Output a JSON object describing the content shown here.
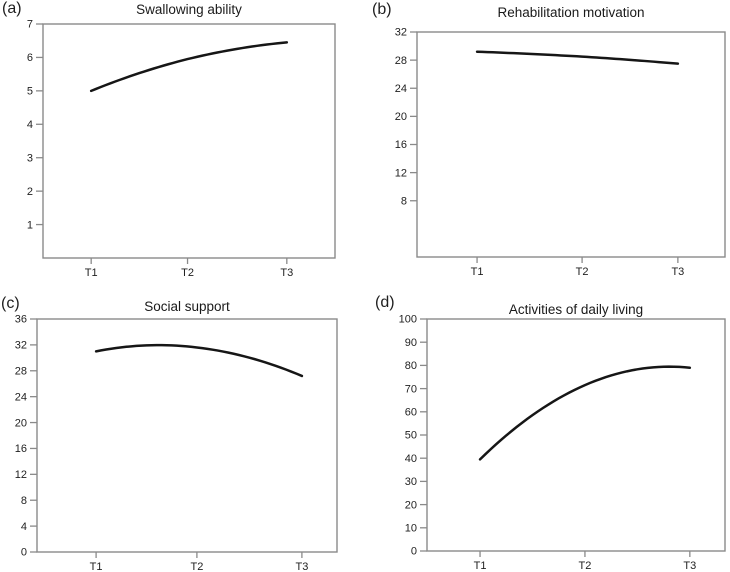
{
  "figure": {
    "description": "Four growth-curve panels over three time points",
    "background": "#ffffff"
  },
  "colors": {
    "line": "#161616",
    "frame": "#8a8a8a",
    "tick": "#8a8a8a",
    "text": "#1f1f1f"
  },
  "chart_data": [
    {
      "type": "line",
      "panel_label": "(a)",
      "title": "Swallowing ability",
      "categories": [
        "T1",
        "T2",
        "T3"
      ],
      "values": [
        5.0,
        5.95,
        6.45
      ],
      "y_ticks": [
        1,
        2,
        3,
        4,
        5,
        6,
        7
      ],
      "ylim": [
        0,
        7
      ],
      "xlabel": "",
      "ylabel": "",
      "grid": false,
      "legend": "none",
      "curve": "quadratic"
    },
    {
      "type": "line",
      "panel_label": "(b)",
      "title": "Rehabilitation motivation",
      "categories": [
        "T1",
        "T2",
        "T3"
      ],
      "values": [
        29.2,
        28.5,
        27.5
      ],
      "y_ticks": [
        8,
        12,
        16,
        20,
        24,
        28,
        32
      ],
      "ylim": [
        0,
        32
      ],
      "xlabel": "",
      "ylabel": "",
      "grid": false,
      "legend": "none",
      "curve": "quadratic"
    },
    {
      "type": "line",
      "panel_label": "(c)",
      "title": "Social support",
      "categories": [
        "T1",
        "T2",
        "T3"
      ],
      "values": [
        31.0,
        31.6,
        27.2
      ],
      "y_ticks": [
        0,
        4,
        8,
        12,
        16,
        20,
        24,
        28,
        32,
        36
      ],
      "ylim": [
        0,
        36
      ],
      "xlabel": "",
      "ylabel": "",
      "grid": false,
      "legend": "none",
      "curve": "quadratic"
    },
    {
      "type": "line",
      "panel_label": "(d)",
      "title": "Activities of daily living",
      "categories": [
        "T1",
        "T2",
        "T3"
      ],
      "values": [
        39.5,
        71.5,
        79.0
      ],
      "y_ticks": [
        0,
        10,
        20,
        30,
        40,
        50,
        60,
        70,
        80,
        90,
        100
      ],
      "ylim": [
        0,
        100
      ],
      "xlabel": "",
      "ylabel": "",
      "grid": false,
      "legend": "none",
      "curve": "quadratic"
    }
  ]
}
